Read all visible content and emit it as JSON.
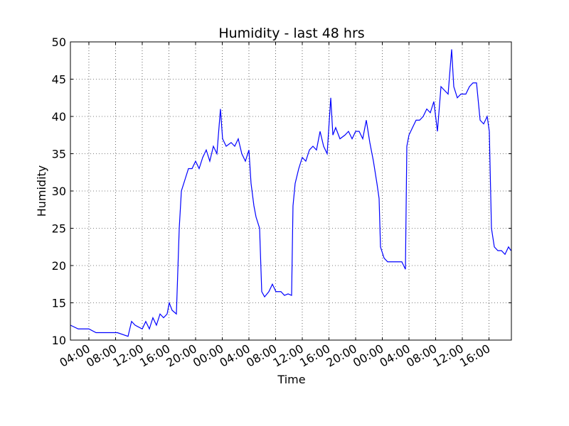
{
  "chart_data": {
    "type": "line",
    "title": "Humidity - last 48 hrs",
    "x_label": "Time",
    "y_label": "Humidity",
    "x": [
      1.23,
      2.4,
      4,
      5.07,
      6.67,
      8.27,
      9.87,
      10.4,
      10.93,
      12,
      12.53,
      13.07,
      13.6,
      14.13,
      14.67,
      15.2,
      15.73,
      16.05,
      16.48,
      17.12,
      17.55,
      17.87,
      18.4,
      18.93,
      19.47,
      20,
      20.53,
      21.07,
      21.6,
      22.13,
      22.67,
      23.2,
      23.73,
      24.05,
      24.59,
      25.33,
      25.87,
      26.4,
      26.93,
      27.47,
      28,
      28.32,
      28.75,
      29.07,
      29.6,
      29.92,
      30.35,
      30.99,
      31.52,
      32.05,
      32.8,
      33.33,
      33.87,
      34.4,
      34.61,
      34.93,
      35.47,
      36,
      36.53,
      37.07,
      37.6,
      38.13,
      38.67,
      39.2,
      39.73,
      40.27,
      40.59,
      41.01,
      41.65,
      42.4,
      42.93,
      43.47,
      44,
      44.53,
      45.07,
      45.6,
      46.13,
      46.67,
      47.2,
      47.52,
      47.73,
      48.27,
      48.8,
      49.33,
      49.87,
      50.4,
      50.93,
      51.47,
      51.68,
      52,
      52.53,
      53.07,
      53.6,
      54.13,
      54.67,
      55.2,
      55.73,
      56.27,
      56.8,
      57.33,
      57.87,
      58.4,
      58.72,
      59.25,
      59.79,
      60.53,
      61.07,
      61.6,
      62.13,
      62.67,
      63.2,
      63.73,
      64.05,
      64.37,
      64.8,
      65.33,
      65.87,
      66.4,
      66.93,
      67.3
    ],
    "series": [
      {
        "name": "Humidity",
        "color": "#0000ff",
        "values": [
          12,
          11.5,
          11.5,
          11,
          11,
          11,
          10.5,
          12.5,
          12,
          11.5,
          12.5,
          11.5,
          13,
          12,
          13.5,
          13,
          13.5,
          15,
          14,
          13.5,
          25,
          30,
          31.5,
          33,
          33,
          34,
          33,
          34.5,
          35.5,
          34,
          36,
          35,
          41,
          37,
          36,
          36.5,
          36,
          37,
          35,
          34,
          35.5,
          31,
          28,
          26.5,
          25,
          16.5,
          15.8,
          16.5,
          17.5,
          16.5,
          16.5,
          16,
          16.2,
          16,
          28,
          31,
          33,
          34.5,
          34,
          35.5,
          36,
          35.5,
          38,
          36,
          35,
          42.5,
          37.5,
          38.5,
          37,
          37.5,
          38,
          37,
          38,
          38,
          37,
          39.5,
          36.5,
          34,
          31,
          29,
          22.5,
          21,
          20.5,
          20.5,
          20.5,
          20.5,
          20.5,
          19.5,
          36,
          37.5,
          38.5,
          39.5,
          39.5,
          40,
          41,
          40.5,
          42,
          38,
          44,
          43.5,
          43,
          49,
          44,
          42.5,
          43,
          43,
          44,
          44.5,
          44.5,
          39.5,
          39,
          40,
          38,
          25,
          22.5,
          22,
          22,
          21.5,
          22.5,
          22
        ]
      }
    ],
    "xlim": [
      1.23,
      67.36
    ],
    "ylim": [
      10,
      50
    ],
    "xticks": [
      {
        "value": 4,
        "label": "04:00"
      },
      {
        "value": 8,
        "label": "08:00"
      },
      {
        "value": 12,
        "label": "12:00"
      },
      {
        "value": 16,
        "label": "16:00"
      },
      {
        "value": 20,
        "label": "20:00"
      },
      {
        "value": 24,
        "label": "00:00"
      },
      {
        "value": 28,
        "label": "04:00"
      },
      {
        "value": 32,
        "label": "08:00"
      },
      {
        "value": 36,
        "label": "12:00"
      },
      {
        "value": 40,
        "label": "16:00"
      },
      {
        "value": 44,
        "label": "20:00"
      },
      {
        "value": 48,
        "label": "00:00"
      },
      {
        "value": 52,
        "label": "04:00"
      },
      {
        "value": 56,
        "label": "08:00"
      },
      {
        "value": 60,
        "label": "12:00"
      },
      {
        "value": 64,
        "label": "16:00"
      }
    ],
    "yticks": [
      10,
      15,
      20,
      25,
      30,
      35,
      40,
      45,
      50
    ],
    "grid": true
  }
}
